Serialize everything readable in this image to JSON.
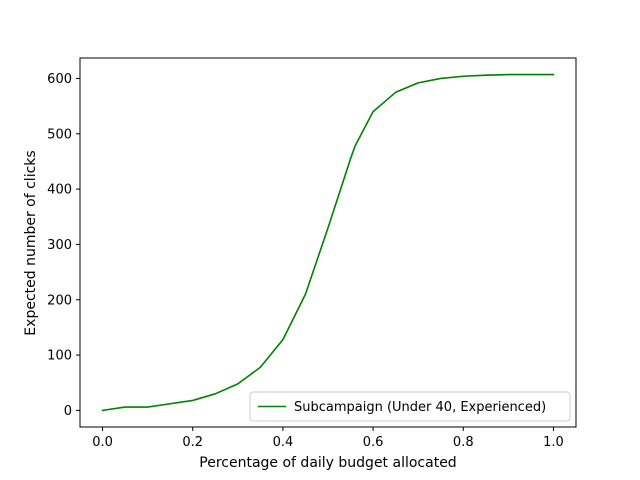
{
  "chart_data": {
    "type": "line",
    "xlabel": "Percentage of daily budget allocated",
    "ylabel": "Expected number of clicks",
    "xlim": [
      -0.05,
      1.05
    ],
    "ylim": [
      -30,
      637
    ],
    "xticks": [
      0.0,
      0.2,
      0.4,
      0.6,
      0.8,
      1.0
    ],
    "xtick_labels": [
      "0.0",
      "0.2",
      "0.4",
      "0.6",
      "0.8",
      "1.0"
    ],
    "yticks": [
      0,
      100,
      200,
      300,
      400,
      500,
      600
    ],
    "ytick_labels": [
      "0",
      "100",
      "200",
      "300",
      "400",
      "500",
      "600"
    ],
    "grid": false,
    "legend_position": "lower-right",
    "series": [
      {
        "name": "Subcampaign (Under 40, Experienced)",
        "color": "#008000",
        "x": [
          0.0,
          0.05,
          0.1,
          0.15,
          0.2,
          0.25,
          0.3,
          0.35,
          0.4,
          0.45,
          0.5,
          0.55,
          0.56,
          0.6,
          0.65,
          0.7,
          0.75,
          0.8,
          0.85,
          0.9,
          0.95,
          1.0
        ],
        "y": [
          0,
          6,
          6,
          12,
          18,
          30,
          48,
          78,
          128,
          210,
          330,
          455,
          478,
          540,
          575,
          592,
          600,
          604,
          606,
          607,
          607,
          607
        ]
      }
    ]
  }
}
